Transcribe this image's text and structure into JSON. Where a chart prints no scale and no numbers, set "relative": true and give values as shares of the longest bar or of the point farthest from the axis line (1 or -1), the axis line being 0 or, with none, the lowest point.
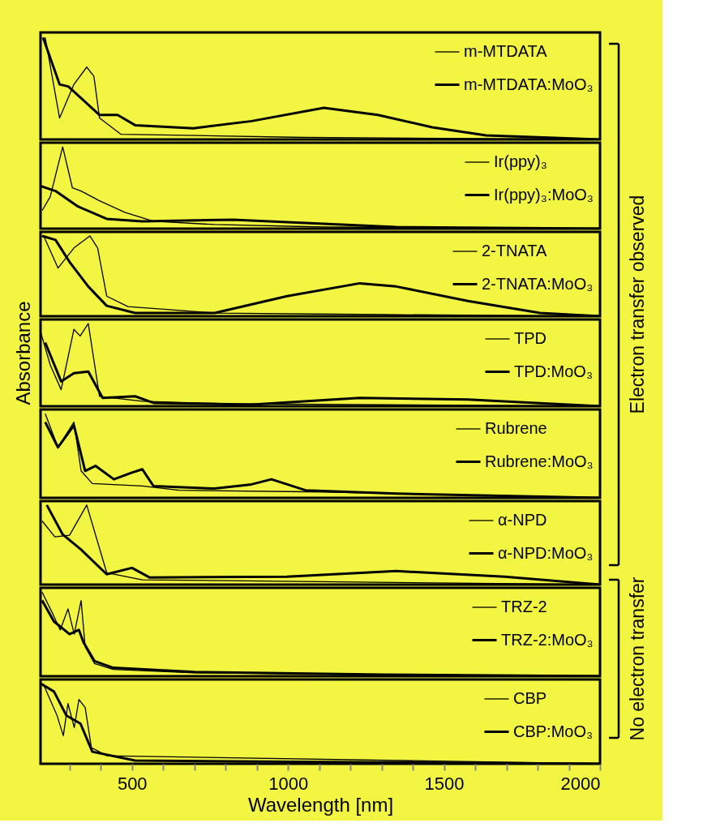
{
  "chart_data": [
    {
      "type": "line",
      "relative": true,
      "xlim": [
        207,
        2000
      ],
      "tick_labels": false,
      "grid": false,
      "legend": "top right",
      "line_style": "solid",
      "series": [
        {
          "name": "m-MTDATA",
          "color": "#000000",
          "x": [
            222,
            268,
            314,
            355,
            378,
            396,
            465,
            671,
            1054,
            2000
          ],
          "values": [
            1.0,
            0.21,
            0.54,
            0.71,
            0.62,
            0.21,
            0.05,
            0.04,
            0.02,
            0
          ]
        },
        {
          "name": "m-MTDATA:MoO₃",
          "color": "#000000",
          "x": [
            215,
            268,
            296,
            396,
            454,
            510,
            697,
            883,
            1115,
            1288,
            1462,
            1635,
            2000
          ],
          "values": [
            1.0,
            0.54,
            0.52,
            0.24,
            0.24,
            0.14,
            0.11,
            0.18,
            0.31,
            0.24,
            0.12,
            0.04,
            0
          ]
        }
      ]
    },
    {
      "type": "line",
      "relative": true,
      "xlim": [
        207,
        2000
      ],
      "tick_labels": false,
      "grid": false,
      "legend": "top right",
      "line_style": "solid",
      "series": [
        {
          "name": "Ir(ppy)₃",
          "color": "#000000",
          "x": [
            212,
            238,
            278,
            309,
            337,
            396,
            477,
            569,
            765,
            1115,
            2000
          ],
          "values": [
            0.22,
            0.39,
            1.0,
            0.5,
            0.46,
            0.34,
            0.2,
            0.09,
            0.05,
            0.02,
            0
          ]
        },
        {
          "name": "Ir(ppy)₃:MoO₃",
          "color": "#000000",
          "x": [
            207,
            255,
            327,
            419,
            533,
            824,
            1056,
            1347,
            2000
          ],
          "values": [
            0.52,
            0.46,
            0.27,
            0.12,
            0.09,
            0.11,
            0.07,
            0.02,
            0
          ]
        }
      ]
    },
    {
      "type": "line",
      "relative": true,
      "xlim": [
        207,
        2000
      ],
      "tick_labels": false,
      "grid": false,
      "legend": "top right",
      "line_style": "solid",
      "annotations": [
        "Electron transfer observed"
      ],
      "series": [
        {
          "name": "2-TNATA",
          "color": "#000000",
          "x": [
            217,
            263,
            314,
            365,
            390,
            419,
            487,
            765,
            1309,
            2000
          ],
          "values": [
            1.0,
            0.6,
            0.85,
            1.0,
            0.85,
            0.25,
            0.12,
            0.04,
            0.02,
            0
          ]
        },
        {
          "name": "2-TNATA:MoO₃",
          "color": "#000000",
          "x": [
            212,
            255,
            301,
            360,
            419,
            510,
            765,
            997,
            1230,
            1347,
            1577,
            1808,
            2000
          ],
          "values": [
            1.0,
            0.95,
            0.67,
            0.37,
            0.13,
            0.04,
            0.04,
            0.25,
            0.41,
            0.37,
            0.19,
            0.04,
            0
          ]
        }
      ]
    },
    {
      "type": "line",
      "relative": true,
      "xlim": [
        207,
        2000
      ],
      "tick_labels": false,
      "grid": false,
      "legend": "top right",
      "line_style": "solid",
      "ylabel": "Absorbance",
      "series": [
        {
          "name": "TPD",
          "color": "#000000",
          "x": [
            207,
            238,
            273,
            314,
            334,
            360,
            396,
            533,
            799,
            2000
          ],
          "values": [
            0.9,
            0.5,
            0.2,
            0.93,
            0.85,
            1.0,
            0.12,
            0.06,
            0.03,
            0
          ]
        },
        {
          "name": "TPD:MoO₃",
          "color": "#000000",
          "x": [
            222,
            273,
            314,
            360,
            406,
            510,
            569,
            883,
            1230,
            1577,
            2000
          ],
          "values": [
            0.77,
            0.3,
            0.4,
            0.42,
            0.1,
            0.12,
            0.04,
            0.02,
            0.1,
            0.08,
            0
          ]
        }
      ]
    },
    {
      "type": "line",
      "relative": true,
      "xlim": [
        207,
        2000
      ],
      "tick_labels": false,
      "grid": false,
      "legend": "top right",
      "line_style": "solid",
      "series": [
        {
          "name": "Rubrene",
          "color": "#000000",
          "x": [
            222,
            263,
            314,
            337,
            373,
            533,
            651,
            1115,
            2000
          ],
          "values": [
            1.0,
            0.6,
            0.9,
            0.32,
            0.17,
            0.14,
            0.09,
            0.07,
            0
          ]
        },
        {
          "name": "Rubrene:MoO₃",
          "color": "#000000",
          "x": [
            222,
            263,
            314,
            350,
            383,
            442,
            500,
            533,
            569,
            765,
            883,
            947,
            1056,
            1347,
            2000
          ],
          "values": [
            0.9,
            0.6,
            0.86,
            0.32,
            0.38,
            0.22,
            0.3,
            0.34,
            0.14,
            0.11,
            0.16,
            0.22,
            0.09,
            0.05,
            0
          ]
        }
      ]
    },
    {
      "type": "line",
      "relative": true,
      "xlim": [
        207,
        2000
      ],
      "tick_labels": false,
      "grid": false,
      "legend": "top right",
      "line_style": "solid",
      "series": [
        {
          "name": "α-NPD",
          "color": "#000000",
          "x": [
            212,
            253,
            300,
            355,
            419,
            533,
            2000
          ],
          "values": [
            0.8,
            0.6,
            0.62,
            1.0,
            0.15,
            0.06,
            0
          ]
        },
        {
          "name": "α-NPD:MoO₃",
          "color": "#000000",
          "x": [
            227,
            278,
            337,
            419,
            500,
            556,
            997,
            1347,
            1694,
            2000
          ],
          "values": [
            1.0,
            0.63,
            0.44,
            0.13,
            0.21,
            0.09,
            0.1,
            0.17,
            0.1,
            0
          ]
        }
      ]
    },
    {
      "type": "line",
      "relative": true,
      "xlim": [
        207,
        2000
      ],
      "tick_labels": false,
      "grid": false,
      "legend": "top right",
      "line_style": "solid",
      "annotations": [
        "No electron transfer"
      ],
      "series": [
        {
          "name": "TRZ-2",
          "color": "#000000",
          "x": [
            212,
            245,
            270,
            295,
            315,
            337,
            350,
            380,
            440,
            700,
            2000
          ],
          "values": [
            1.0,
            0.75,
            0.55,
            0.8,
            0.5,
            0.9,
            0.35,
            0.15,
            0.08,
            0.04,
            0
          ]
        },
        {
          "name": "TRZ-2:MoO₃",
          "color": "#000000",
          "x": [
            212,
            250,
            300,
            330,
            345,
            380,
            440,
            700,
            1300,
            2000
          ],
          "values": [
            0.9,
            0.65,
            0.5,
            0.55,
            0.4,
            0.18,
            0.1,
            0.05,
            0.02,
            0
          ]
        }
      ]
    },
    {
      "type": "line",
      "relative": true,
      "xlim": [
        207,
        2000
      ],
      "tick_labels": "x",
      "grid": false,
      "legend": "top right",
      "line_style": "solid",
      "xlabel": "Wavelength [nm]",
      "xticks": [
        {
          "value": 300,
          "label": null
        },
        {
          "value": 400,
          "label": null
        },
        500,
        {
          "value": 600,
          "label": null
        },
        {
          "value": 700,
          "label": null
        },
        {
          "value": 800,
          "label": null
        },
        {
          "value": 900,
          "label": null
        },
        1000,
        {
          "value": 1100,
          "label": null
        },
        {
          "value": 1200,
          "label": null
        },
        {
          "value": 1300,
          "label": null
        },
        {
          "value": 1400,
          "label": null
        },
        1500,
        {
          "value": 1600,
          "label": null
        },
        {
          "value": 1700,
          "label": null
        },
        {
          "value": 1800,
          "label": null
        },
        {
          "value": 1900,
          "label": null
        },
        2000
      ],
      "series": [
        {
          "name": "CBP",
          "color": "#000000",
          "x": [
            215,
            260,
            280,
            295,
            315,
            330,
            350,
            370,
            420,
            2000
          ],
          "values": [
            1.0,
            0.6,
            0.35,
            0.75,
            0.45,
            0.8,
            0.7,
            0.2,
            0.1,
            0
          ]
        },
        {
          "name": "CBP:MoO₃",
          "color": "#000000",
          "x": [
            207,
            250,
            290,
            335,
            373,
            510,
            1200,
            2000
          ],
          "values": [
            1.0,
            0.9,
            0.6,
            0.5,
            0.15,
            0.04,
            0.02,
            0
          ]
        }
      ]
    }
  ]
}
